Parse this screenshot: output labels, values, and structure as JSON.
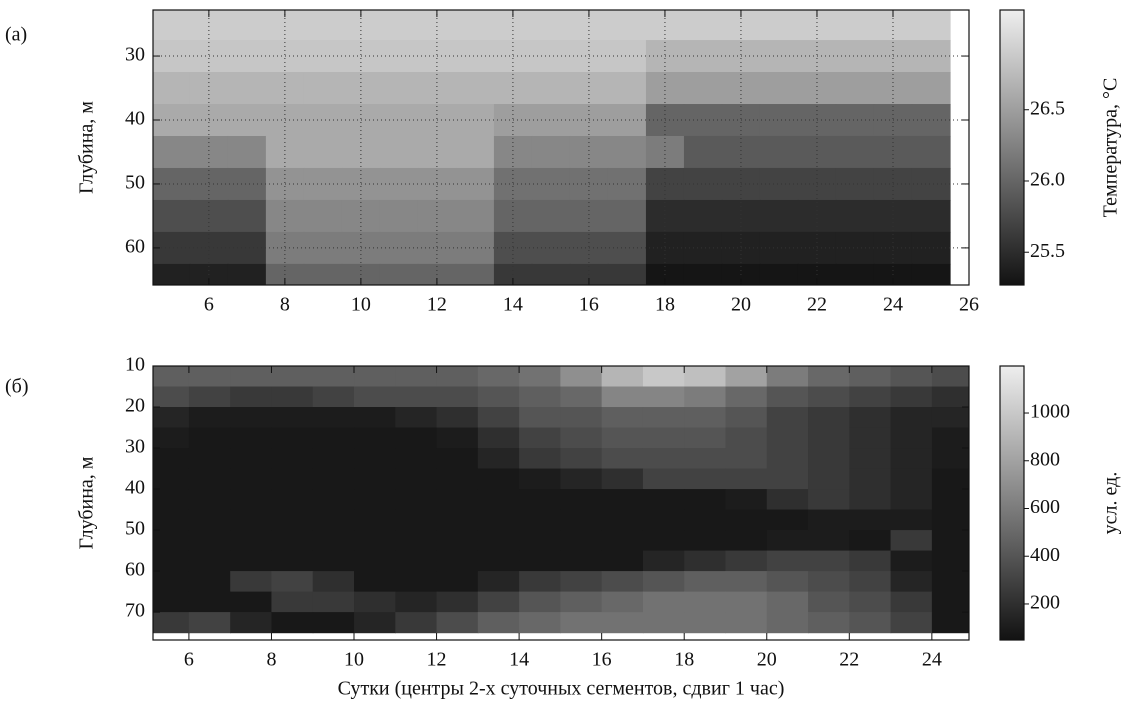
{
  "chart_data": [
    {
      "type": "heatmap",
      "panel_label": "(а)",
      "ylabel": "Глубина, м",
      "invert_y": true,
      "grid": true,
      "x": [
        5,
        6,
        7,
        8,
        9,
        10,
        11,
        12,
        13,
        14,
        15,
        16,
        17,
        18,
        19,
        20,
        21,
        22,
        23,
        24,
        25
      ],
      "y": [
        25,
        30,
        35,
        40,
        45,
        50,
        55,
        60,
        65
      ],
      "z": [
        [
          26.9,
          26.9,
          26.9,
          26.9,
          26.9,
          26.9,
          26.9,
          26.9,
          26.9,
          26.9,
          26.9,
          26.9,
          26.9,
          26.9,
          26.9,
          26.9,
          26.9,
          26.9,
          26.9,
          26.9,
          26.9
        ],
        [
          26.85,
          26.85,
          26.85,
          26.85,
          26.85,
          26.85,
          26.85,
          26.85,
          26.85,
          26.85,
          26.85,
          26.85,
          26.85,
          26.7,
          26.7,
          26.7,
          26.7,
          26.7,
          26.7,
          26.7,
          26.7
        ],
        [
          26.7,
          26.7,
          26.7,
          26.7,
          26.7,
          26.7,
          26.7,
          26.7,
          26.7,
          26.7,
          26.7,
          26.7,
          26.7,
          26.5,
          26.5,
          26.5,
          26.5,
          26.5,
          26.5,
          26.5,
          26.5
        ],
        [
          26.6,
          26.6,
          26.6,
          26.6,
          26.6,
          26.6,
          26.6,
          26.6,
          26.6,
          26.5,
          26.5,
          26.5,
          26.5,
          26.0,
          26.0,
          26.0,
          26.0,
          26.0,
          26.0,
          26.0,
          26.0
        ],
        [
          26.3,
          26.3,
          26.3,
          26.6,
          26.6,
          26.6,
          26.6,
          26.6,
          26.6,
          26.3,
          26.3,
          26.3,
          26.3,
          26.2,
          25.9,
          25.9,
          25.9,
          25.9,
          25.9,
          25.9,
          25.9
        ],
        [
          26.0,
          26.0,
          26.0,
          26.4,
          26.4,
          26.4,
          26.4,
          26.4,
          26.4,
          26.1,
          26.1,
          26.1,
          26.1,
          25.7,
          25.7,
          25.7,
          25.7,
          25.7,
          25.7,
          25.7,
          25.7
        ],
        [
          25.8,
          25.8,
          25.8,
          26.3,
          26.3,
          26.3,
          26.3,
          26.3,
          26.3,
          26.0,
          26.0,
          26.0,
          26.0,
          25.5,
          25.5,
          25.5,
          25.5,
          25.5,
          25.5,
          25.5,
          25.5
        ],
        [
          25.6,
          25.6,
          25.6,
          26.2,
          26.2,
          26.2,
          26.2,
          26.2,
          26.2,
          25.8,
          25.8,
          25.8,
          25.8,
          25.4,
          25.4,
          25.4,
          25.4,
          25.4,
          25.4,
          25.4,
          25.4
        ],
        [
          25.4,
          25.4,
          25.4,
          26.0,
          26.0,
          26.0,
          26.0,
          26.0,
          26.0,
          25.6,
          25.6,
          25.6,
          25.6,
          25.3,
          25.3,
          25.3,
          25.3,
          25.3,
          25.3,
          25.3,
          25.3
        ]
      ],
      "xlim": [
        4.53,
        26
      ],
      "xticks": [
        6,
        8,
        10,
        12,
        14,
        16,
        18,
        20,
        22,
        24,
        26
      ],
      "ylim": [
        22.8,
        65.8
      ],
      "yticks": [
        30,
        40,
        50,
        60
      ],
      "colorbar": {
        "label": "Температура, °C",
        "lim": [
          25.27,
          27.2
        ],
        "ticks": [
          25.5,
          {
            "value": 26,
            "label": "26.0"
          },
          26.5
        ]
      }
    },
    {
      "type": "heatmap",
      "panel_label": "(б)",
      "ylabel": "Глубина, м",
      "invert_y": true,
      "grid": false,
      "xlabel": "Сутки (центры 2-х суточных сегментов, сдвиг 1 час)",
      "x": [
        5.5,
        6.5,
        7.5,
        8.5,
        9.5,
        10.5,
        11.5,
        12.5,
        13.5,
        14.5,
        15.5,
        16.5,
        17.5,
        18.5,
        19.5,
        20.5,
        21.5,
        22.5,
        23.5,
        24.5
      ],
      "y": [
        12.5,
        17.5,
        22.5,
        27.5,
        32.5,
        37.5,
        42.5,
        47.5,
        52.5,
        57.5,
        62.5,
        67.5,
        72.5
      ],
      "z": [
        [
          450,
          450,
          450,
          450,
          450,
          450,
          450,
          450,
          500,
          550,
          700,
          900,
          1000,
          950,
          800,
          600,
          500,
          450,
          400,
          350
        ],
        [
          350,
          300,
          250,
          250,
          300,
          350,
          350,
          350,
          400,
          450,
          500,
          650,
          650,
          600,
          500,
          400,
          350,
          300,
          250,
          200
        ],
        [
          150,
          100,
          100,
          100,
          100,
          100,
          150,
          200,
          300,
          400,
          400,
          450,
          450,
          450,
          400,
          300,
          250,
          200,
          150,
          150
        ],
        [
          100,
          80,
          80,
          80,
          80,
          80,
          80,
          100,
          200,
          300,
          350,
          400,
          400,
          400,
          350,
          300,
          250,
          200,
          150,
          100
        ],
        [
          80,
          80,
          80,
          80,
          80,
          80,
          80,
          80,
          150,
          250,
          300,
          350,
          350,
          350,
          350,
          300,
          250,
          200,
          150,
          100
        ],
        [
          80,
          80,
          80,
          80,
          80,
          80,
          80,
          80,
          80,
          100,
          150,
          200,
          300,
          300,
          300,
          300,
          250,
          200,
          150,
          80
        ],
        [
          80,
          80,
          80,
          80,
          80,
          80,
          80,
          80,
          80,
          80,
          80,
          80,
          80,
          80,
          100,
          200,
          250,
          200,
          150,
          80
        ],
        [
          80,
          80,
          80,
          80,
          80,
          80,
          80,
          80,
          80,
          80,
          80,
          80,
          80,
          80,
          80,
          80,
          100,
          100,
          100,
          80
        ],
        [
          80,
          80,
          80,
          80,
          80,
          80,
          80,
          80,
          80,
          80,
          80,
          80,
          80,
          80,
          80,
          100,
          100,
          80,
          250,
          80
        ],
        [
          80,
          80,
          80,
          80,
          80,
          80,
          80,
          80,
          80,
          80,
          80,
          80,
          150,
          200,
          250,
          300,
          300,
          250,
          100,
          80
        ],
        [
          80,
          80,
          250,
          300,
          200,
          80,
          80,
          80,
          150,
          250,
          300,
          350,
          400,
          450,
          450,
          400,
          350,
          300,
          150,
          80
        ],
        [
          80,
          80,
          80,
          250,
          250,
          200,
          150,
          200,
          300,
          400,
          450,
          500,
          550,
          550,
          550,
          500,
          400,
          350,
          250,
          80
        ],
        [
          250,
          300,
          150,
          80,
          80,
          150,
          250,
          350,
          450,
          500,
          550,
          550,
          550,
          550,
          550,
          500,
          450,
          400,
          300,
          80
        ]
      ],
      "xlim": [
        5.13,
        24.9
      ],
      "xticks": [
        6,
        8,
        10,
        12,
        14,
        16,
        18,
        20,
        22,
        24
      ],
      "ylim": [
        10,
        76.8
      ],
      "yticks": [
        10,
        20,
        30,
        40,
        50,
        60,
        70
      ],
      "colorbar": {
        "label": "усл. ед.",
        "lim": [
          49,
          1197
        ],
        "ticks": [
          200,
          400,
          600,
          800,
          1000
        ]
      }
    }
  ]
}
